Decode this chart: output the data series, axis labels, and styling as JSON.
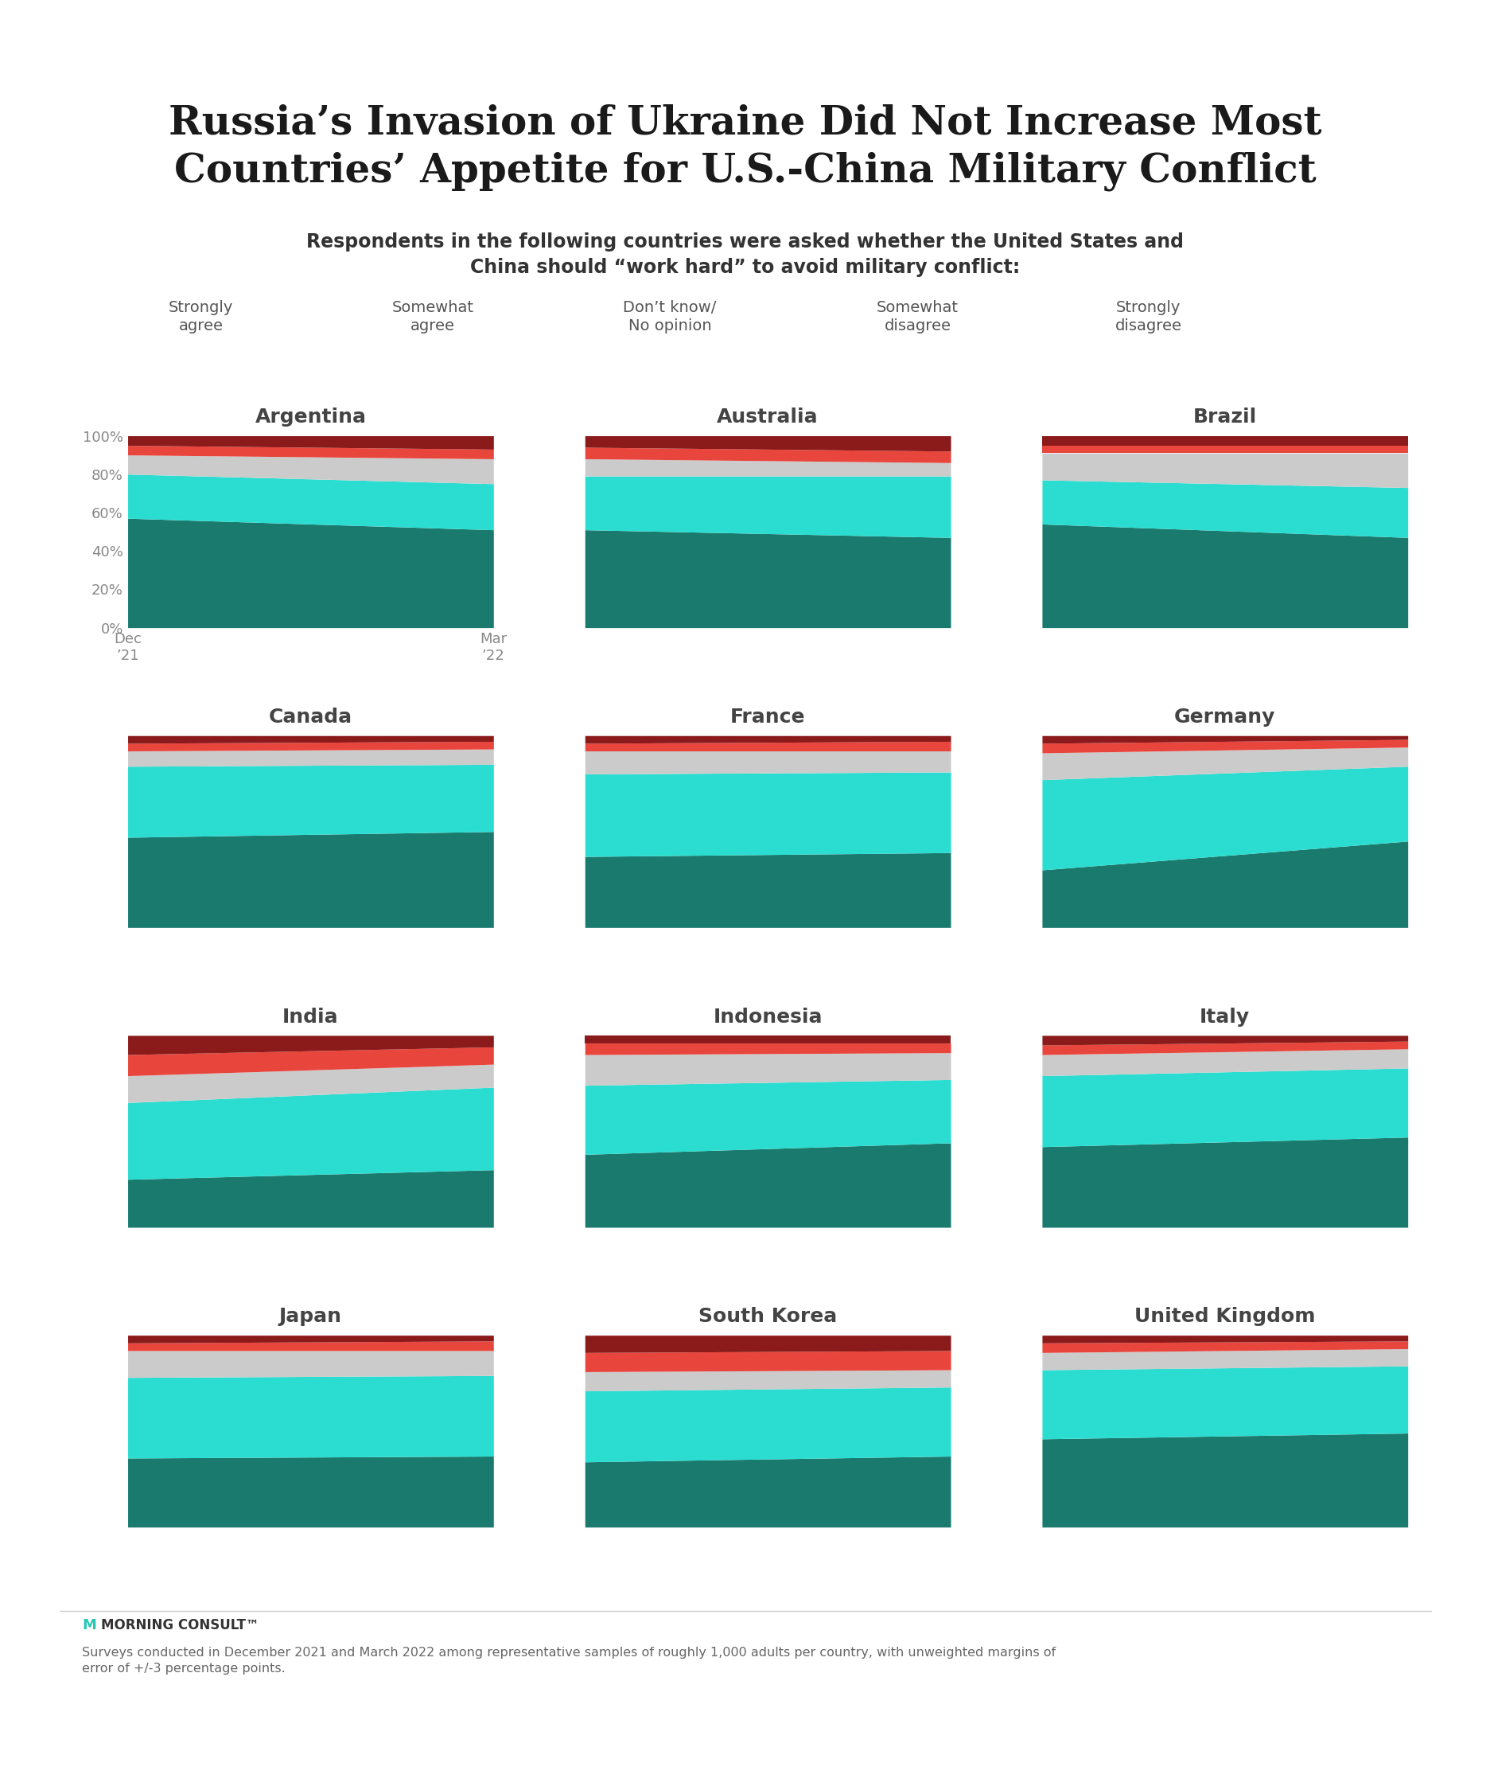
{
  "title": "Russia’s Invasion of Ukraine Did Not Increase Most\nCountries’ Appetite for U.S.-China Military Conflict",
  "subtitle": "Respondents in the following countries were asked whether the United States and\nChina should “work hard” to avoid military conflict:",
  "colors": {
    "strongly_agree": "#1a7a6e",
    "somewhat_agree": "#2addd0",
    "dont_know": "#cbcbcb",
    "somewhat_disagree": "#e8453c",
    "strongly_disagree": "#8b1a1a"
  },
  "legend_labels": [
    "Strongly\nagree",
    "Somewhat\nagree",
    "Don’t know/\nNo opinion",
    "Somewhat\ndisagree",
    "Strongly\ndisagree"
  ],
  "countries": [
    "Argentina",
    "Australia",
    "Brazil",
    "Canada",
    "France",
    "Germany",
    "India",
    "Indonesia",
    "Italy",
    "Japan",
    "South Korea",
    "United Kingdom"
  ],
  "data": {
    "Argentina": {
      "strongly_agree": [
        57,
        51
      ],
      "somewhat_agree": [
        23,
        24
      ],
      "dont_know": [
        10,
        13
      ],
      "somewhat_disagree": [
        5,
        5
      ],
      "strongly_disagree": [
        5,
        7
      ]
    },
    "Australia": {
      "strongly_agree": [
        51,
        47
      ],
      "somewhat_agree": [
        28,
        32
      ],
      "dont_know": [
        9,
        7
      ],
      "somewhat_disagree": [
        6,
        6
      ],
      "strongly_disagree": [
        6,
        8
      ]
    },
    "Brazil": {
      "strongly_agree": [
        54,
        47
      ],
      "somewhat_agree": [
        23,
        26
      ],
      "dont_know": [
        14,
        18
      ],
      "somewhat_disagree": [
        4,
        4
      ],
      "strongly_disagree": [
        5,
        5
      ]
    },
    "Canada": {
      "strongly_agree": [
        47,
        50
      ],
      "somewhat_agree": [
        37,
        35
      ],
      "dont_know": [
        8,
        8
      ],
      "somewhat_disagree": [
        4,
        4
      ],
      "strongly_disagree": [
        4,
        3
      ]
    },
    "France": {
      "strongly_agree": [
        37,
        39
      ],
      "somewhat_agree": [
        43,
        42
      ],
      "dont_know": [
        12,
        11
      ],
      "somewhat_disagree": [
        4,
        5
      ],
      "strongly_disagree": [
        4,
        3
      ]
    },
    "Germany": {
      "strongly_agree": [
        30,
        45
      ],
      "somewhat_agree": [
        47,
        39
      ],
      "dont_know": [
        14,
        10
      ],
      "somewhat_disagree": [
        5,
        4
      ],
      "strongly_disagree": [
        4,
        2
      ]
    },
    "India": {
      "strongly_agree": [
        25,
        30
      ],
      "somewhat_agree": [
        40,
        43
      ],
      "dont_know": [
        14,
        12
      ],
      "somewhat_disagree": [
        11,
        9
      ],
      "strongly_disagree": [
        10,
        6
      ]
    },
    "Indonesia": {
      "strongly_agree": [
        38,
        44
      ],
      "somewhat_agree": [
        36,
        33
      ],
      "dont_know": [
        16,
        14
      ],
      "somewhat_disagree": [
        6,
        5
      ],
      "strongly_disagree": [
        4,
        4
      ]
    },
    "Italy": {
      "strongly_agree": [
        42,
        47
      ],
      "somewhat_agree": [
        37,
        36
      ],
      "dont_know": [
        11,
        10
      ],
      "somewhat_disagree": [
        5,
        4
      ],
      "strongly_disagree": [
        5,
        3
      ]
    },
    "Japan": {
      "strongly_agree": [
        36,
        37
      ],
      "somewhat_agree": [
        42,
        42
      ],
      "dont_know": [
        14,
        13
      ],
      "somewhat_disagree": [
        4,
        5
      ],
      "strongly_disagree": [
        4,
        3
      ]
    },
    "South Korea": {
      "strongly_agree": [
        34,
        37
      ],
      "somewhat_agree": [
        37,
        36
      ],
      "dont_know": [
        10,
        9
      ],
      "somewhat_disagree": [
        10,
        10
      ],
      "strongly_disagree": [
        9,
        8
      ]
    },
    "United Kingdom": {
      "strongly_agree": [
        46,
        49
      ],
      "somewhat_agree": [
        36,
        35
      ],
      "dont_know": [
        9,
        9
      ],
      "somewhat_disagree": [
        5,
        4
      ],
      "strongly_disagree": [
        4,
        3
      ]
    }
  },
  "background_color": "#ffffff",
  "top_bar_color": "#26c6b6",
  "footer_text": "Surveys conducted in December 2021 and March 2022 among representative samples of roughly 1,000 adults per country, with unweighted margins of\nerror of +/-3 percentage points."
}
